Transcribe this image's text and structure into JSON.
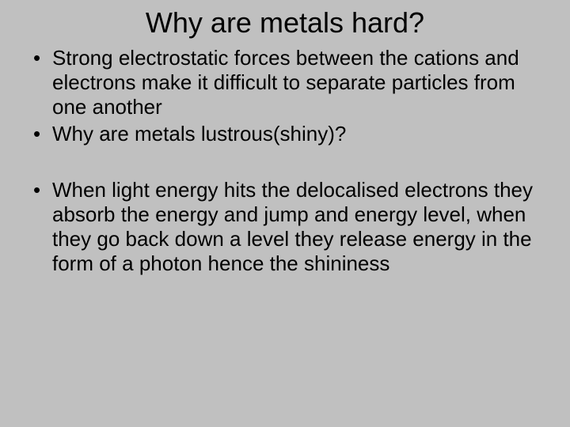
{
  "slide": {
    "title": "Why are metals hard?",
    "bullets": [
      "Strong electrostatic forces between the cations and electrons make it difficult to separate particles from one another",
      "Why are metals lustrous(shiny)?",
      "When light energy hits the delocalised electrons  they absorb the energy and jump and energy level, when they go back down a level they release energy in the form of a photon hence the shininess"
    ],
    "background_color": "#c0c0c0",
    "text_color": "#000000",
    "title_fontsize": 36,
    "body_fontsize": 26
  }
}
